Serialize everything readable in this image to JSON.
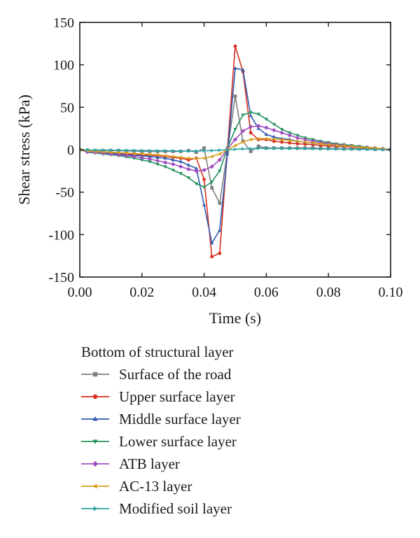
{
  "chart_data": {
    "type": "line",
    "title": "",
    "xlabel": "Time (s)",
    "ylabel": "Shear stress (kPa)",
    "xlim": [
      0,
      0.1
    ],
    "ylim": [
      -150,
      150
    ],
    "x_ticks": [
      0,
      0.02,
      0.04,
      0.06,
      0.08,
      0.1
    ],
    "x_tick_labels": [
      "0.00",
      "0.02",
      "0.04",
      "0.06",
      "0.08",
      "0.10"
    ],
    "y_ticks": [
      -150,
      -100,
      -50,
      0,
      50,
      100,
      150
    ],
    "y_tick_labels": [
      "-150",
      "-100",
      "-50",
      "0",
      "50",
      "100",
      "150"
    ],
    "grid": false,
    "legend_title": "Bottom of structural layer",
    "legend_position": "below",
    "series": [
      {
        "name": "Surface of the road",
        "color": "#7f7f7f",
        "marker": "square",
        "x": [
          0,
          0.0025,
          0.005,
          0.0075,
          0.01,
          0.0125,
          0.015,
          0.0175,
          0.02,
          0.0225,
          0.025,
          0.0275,
          0.03,
          0.0325,
          0.035,
          0.0375,
          0.04,
          0.0425,
          0.045,
          0.0475,
          0.05,
          0.0525,
          0.055,
          0.0575,
          0.06,
          0.0625,
          0.065,
          0.0675,
          0.07,
          0.0725,
          0.075,
          0.0775,
          0.08,
          0.0825,
          0.085,
          0.0875,
          0.09,
          0.0925,
          0.095,
          0.0975,
          0.1
        ],
        "y": [
          0,
          -0.5,
          -1,
          -1,
          -1,
          -1,
          -1.5,
          -1.5,
          -2,
          -2,
          -2,
          -2,
          -2,
          -2,
          -1,
          -3,
          2,
          -45,
          -63,
          -2,
          63,
          10,
          -2,
          4,
          2,
          2,
          2,
          2,
          2,
          2,
          2,
          1.5,
          1.5,
          1.5,
          1,
          1,
          1,
          1,
          0.5,
          0.5,
          0
        ]
      },
      {
        "name": "Upper surface layer",
        "color": "#d62f1f",
        "marker": "circle",
        "x": [
          0,
          0.0025,
          0.005,
          0.0075,
          0.01,
          0.0125,
          0.015,
          0.0175,
          0.02,
          0.0225,
          0.025,
          0.0275,
          0.03,
          0.0325,
          0.035,
          0.0375,
          0.04,
          0.0425,
          0.045,
          0.0475,
          0.05,
          0.0525,
          0.055,
          0.0575,
          0.06,
          0.0625,
          0.065,
          0.0675,
          0.07,
          0.0725,
          0.075,
          0.0775,
          0.08,
          0.0825,
          0.085,
          0.0875,
          0.09,
          0.0925,
          0.095,
          0.0975,
          0.1
        ],
        "y": [
          0,
          -2,
          -2.5,
          -3,
          -4,
          -4.5,
          -5,
          -5.5,
          -6,
          -6.5,
          -7,
          -8,
          -9,
          -10,
          -12,
          -10,
          -35,
          -126,
          -122,
          0,
          122,
          92,
          20,
          12,
          12,
          10,
          9,
          8,
          7,
          6.5,
          6,
          5,
          4.5,
          4,
          3.5,
          3,
          2.5,
          2,
          1.5,
          1,
          0
        ]
      },
      {
        "name": "Middle surface layer",
        "color": "#2f58b0",
        "marker": "triangle-up",
        "x": [
          0,
          0.0025,
          0.005,
          0.0075,
          0.01,
          0.0125,
          0.015,
          0.0175,
          0.02,
          0.0225,
          0.025,
          0.0275,
          0.03,
          0.0325,
          0.035,
          0.0375,
          0.04,
          0.0425,
          0.045,
          0.0475,
          0.05,
          0.0525,
          0.055,
          0.0575,
          0.06,
          0.0625,
          0.065,
          0.0675,
          0.07,
          0.0725,
          0.075,
          0.0775,
          0.08,
          0.0825,
          0.085,
          0.0875,
          0.09,
          0.0925,
          0.095,
          0.0975,
          0.1
        ],
        "y": [
          0,
          -2.5,
          -3,
          -3.5,
          -4.5,
          -5,
          -6,
          -6.5,
          -7,
          -8,
          -9,
          -10,
          -12,
          -14,
          -18,
          -22,
          -65,
          -110,
          -95,
          -5,
          96,
          94,
          40,
          25,
          18,
          15,
          13,
          12,
          10,
          9,
          8,
          7,
          6,
          5,
          4.5,
          4,
          3,
          2.5,
          2,
          1,
          0
        ]
      },
      {
        "name": "Lower surface layer",
        "color": "#24945c",
        "marker": "triangle-down",
        "x": [
          0,
          0.0025,
          0.005,
          0.0075,
          0.01,
          0.0125,
          0.015,
          0.0175,
          0.02,
          0.0225,
          0.025,
          0.0275,
          0.03,
          0.0325,
          0.035,
          0.0375,
          0.04,
          0.0425,
          0.045,
          0.0475,
          0.05,
          0.0525,
          0.055,
          0.0575,
          0.06,
          0.0625,
          0.065,
          0.0675,
          0.07,
          0.0725,
          0.075,
          0.0775,
          0.08,
          0.0825,
          0.085,
          0.0875,
          0.09,
          0.0925,
          0.095,
          0.0975,
          0.1
        ],
        "y": [
          0,
          -3,
          -4,
          -5,
          -6,
          -7,
          -8.5,
          -10,
          -12,
          -14,
          -17,
          -20,
          -24,
          -28,
          -33,
          -40,
          -44,
          -38,
          -25,
          2,
          24,
          41,
          44,
          42,
          36,
          30,
          24,
          20,
          17,
          14,
          12,
          10,
          8.5,
          7,
          6,
          5,
          4,
          3,
          2,
          1,
          0
        ]
      },
      {
        "name": "ATB layer",
        "color": "#a04dc0",
        "marker": "diamond",
        "x": [
          0,
          0.0025,
          0.005,
          0.0075,
          0.01,
          0.0125,
          0.015,
          0.0175,
          0.02,
          0.0225,
          0.025,
          0.0275,
          0.03,
          0.0325,
          0.035,
          0.0375,
          0.04,
          0.0425,
          0.045,
          0.0475,
          0.05,
          0.0525,
          0.055,
          0.0575,
          0.06,
          0.0625,
          0.065,
          0.0675,
          0.07,
          0.0725,
          0.075,
          0.0775,
          0.08,
          0.0825,
          0.085,
          0.0875,
          0.09,
          0.0925,
          0.095,
          0.0975,
          0.1
        ],
        "y": [
          0,
          -2.5,
          -3,
          -4,
          -5,
          -6,
          -7,
          -8,
          -9.5,
          -11,
          -13,
          -15,
          -17,
          -20,
          -23,
          -25,
          -24,
          -20,
          -12,
          1,
          12,
          22,
          27,
          28,
          26,
          23,
          20,
          17,
          14,
          12,
          10,
          8.5,
          7,
          6,
          5,
          4,
          3,
          2.5,
          2,
          1,
          0
        ]
      },
      {
        "name": "AC-13 layer",
        "color": "#d9a01c",
        "marker": "triangle-left",
        "x": [
          0,
          0.0025,
          0.005,
          0.0075,
          0.01,
          0.0125,
          0.015,
          0.0175,
          0.02,
          0.0225,
          0.025,
          0.0275,
          0.03,
          0.0325,
          0.035,
          0.0375,
          0.04,
          0.0425,
          0.045,
          0.0475,
          0.05,
          0.0525,
          0.055,
          0.0575,
          0.06,
          0.0625,
          0.065,
          0.0675,
          0.07,
          0.0725,
          0.075,
          0.0775,
          0.08,
          0.0825,
          0.085,
          0.0875,
          0.09,
          0.0925,
          0.095,
          0.0975,
          0.1
        ],
        "y": [
          0,
          -1.5,
          -2,
          -2.5,
          -3,
          -3.5,
          -4,
          -4.5,
          -5,
          -5.5,
          -6,
          -7,
          -8,
          -9,
          -10,
          -10.5,
          -10,
          -8,
          -5,
          0,
          5,
          9,
          12,
          13,
          13,
          12.5,
          12,
          11,
          10,
          9,
          8,
          7,
          6,
          5,
          4.5,
          4,
          3,
          2.5,
          2,
          1,
          0
        ]
      },
      {
        "name": "Modified soil layer",
        "color": "#2aa3a3",
        "marker": "triangle-right",
        "x": [
          0,
          0.0025,
          0.005,
          0.0075,
          0.01,
          0.0125,
          0.015,
          0.0175,
          0.02,
          0.0225,
          0.025,
          0.0275,
          0.03,
          0.0325,
          0.035,
          0.0375,
          0.04,
          0.0425,
          0.045,
          0.0475,
          0.05,
          0.0525,
          0.055,
          0.0575,
          0.06,
          0.0625,
          0.065,
          0.0675,
          0.07,
          0.0725,
          0.075,
          0.0775,
          0.08,
          0.0825,
          0.085,
          0.0875,
          0.09,
          0.0925,
          0.095,
          0.0975,
          0.1
        ],
        "y": [
          0,
          -0.3,
          -0.4,
          -0.5,
          -0.6,
          -0.7,
          -0.8,
          -0.9,
          -1,
          -1.1,
          -1.2,
          -1.3,
          -1.4,
          -1.5,
          -1.5,
          -1.5,
          -1.2,
          -1,
          -0.5,
          0,
          0.5,
          1,
          1.2,
          1.5,
          1.5,
          1.5,
          1.5,
          1.4,
          1.3,
          1.2,
          1.1,
          1,
          0.9,
          0.8,
          0.7,
          0.6,
          0.5,
          0.4,
          0.3,
          0.2,
          0
        ]
      }
    ]
  }
}
